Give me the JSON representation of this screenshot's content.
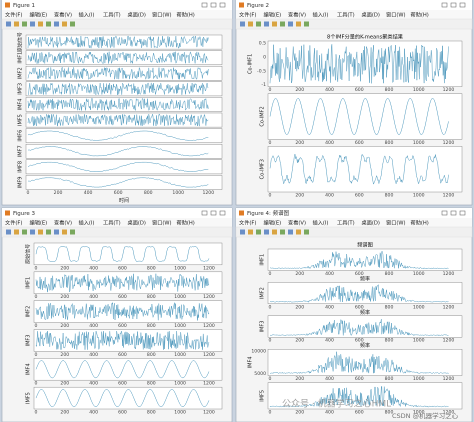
{
  "menu": [
    "文件(F)",
    "编辑(E)",
    "查看(V)",
    "插入(I)",
    "工具(T)",
    "桌面(D)",
    "窗口(W)",
    "帮助(H)"
  ],
  "xticks": [
    0,
    200,
    400,
    600,
    800,
    1000,
    1200
  ],
  "windows": [
    {
      "title": "Figure 1",
      "xlabel": "时间",
      "plots": [
        {
          "ylabel": "原始信号"
        },
        {
          "ylabel": "IMF1"
        },
        {
          "ylabel": "IMF2"
        },
        {
          "ylabel": "IMF3"
        },
        {
          "ylabel": "IMF4"
        },
        {
          "ylabel": "IMF5"
        },
        {
          "ylabel": "IMF6"
        },
        {
          "ylabel": "IMF7"
        },
        {
          "ylabel": "IMF8"
        },
        {
          "ylabel": "IMF9"
        }
      ]
    },
    {
      "title": "Figure 2",
      "plots": [
        {
          "title": "8个IMF分量的K-means聚类结果",
          "ylabel": "Co-IMF1",
          "yticks": [
            0.5,
            0,
            -0.5,
            -1
          ]
        },
        {
          "ylabel": "Co-IMF2"
        },
        {
          "ylabel": "Co-IMF3"
        }
      ]
    },
    {
      "title": "Figure 3",
      "plots": [
        {
          "ylabel": "原始信号"
        },
        {
          "ylabel": "IMF1"
        },
        {
          "ylabel": "IMF2"
        },
        {
          "ylabel": "IMF3"
        },
        {
          "ylabel": "IMF4"
        },
        {
          "ylabel": "IMF5"
        }
      ]
    },
    {
      "title": "Figure 4: 频谱图",
      "plots": [
        {
          "title": "频谱图",
          "ylabel": "IMF1",
          "xlabel": "频率"
        },
        {
          "ylabel": "IMF2",
          "xlabel": "频率"
        },
        {
          "ylabel": "IMF3",
          "xlabel": "频率"
        },
        {
          "ylabel": "IMF4",
          "yticks": [
            10000,
            5000
          ]
        },
        {
          "ylabel": "IMF5"
        }
      ]
    }
  ],
  "watermark": "公众号 · 机器学习之心HML",
  "csdn": "CSDN @机器学习之心"
}
